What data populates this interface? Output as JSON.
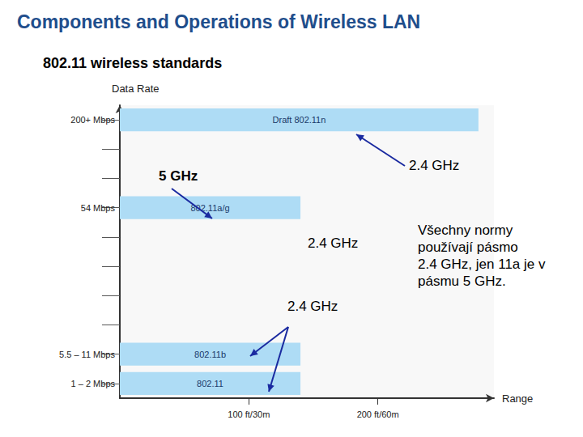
{
  "chart_data": {
    "type": "bar",
    "orientation": "horizontal",
    "title": "Components and Operations of Wireless LAN",
    "subtitle": "802.11 wireless standards",
    "y_label": "Data Rate",
    "x_label": "Range",
    "categories": [
      "1 – 2 Mbps",
      "5.5 – 11 Mbps",
      null,
      null,
      null,
      null,
      "54 Mbps",
      null,
      null,
      "200+ Mbps"
    ],
    "values": [
      140,
      140,
      null,
      null,
      null,
      null,
      140,
      null,
      null,
      278
    ],
    "bar_labels": [
      "802.11",
      "802.11b",
      null,
      null,
      null,
      null,
      "802.11a/g",
      null,
      null,
      "Draft 802.11n"
    ],
    "color": "#aedcf5",
    "xlim": [
      0,
      290
    ],
    "xticks": [
      {
        "value": 100,
        "label": "100 ft/30m"
      },
      {
        "value": 200,
        "label": "200 ft/60m"
      }
    ],
    "grid": false,
    "annotations": [
      "5 GHz",
      "2.4 GHz",
      "2.4 GHz",
      "2.4 GHz",
      "Všechny normy používají pásmo 2.4 GHz, jen 11a je v pásmu 5 GHz."
    ]
  }
}
